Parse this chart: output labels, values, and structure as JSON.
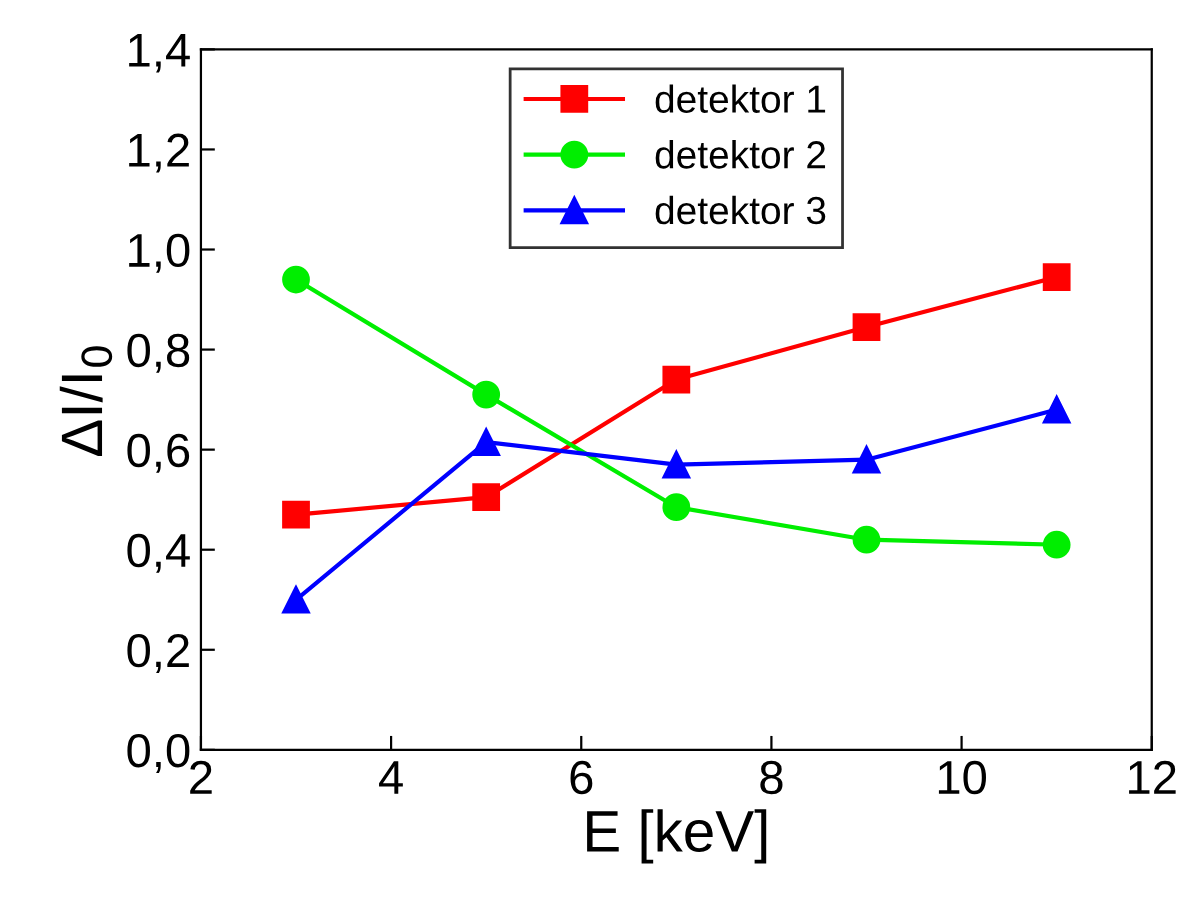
{
  "chart_data": {
    "type": "line",
    "xlabel": "E [keV]",
    "ylabel": "ΔI/I$_{0}$",
    "x": [
      3,
      5,
      7,
      9,
      11
    ],
    "series": [
      {
        "name": "detektor 1",
        "color": "#ff0000",
        "marker": "square",
        "values": [
          0.47,
          0.505,
          0.74,
          0.845,
          0.945
        ]
      },
      {
        "name": "detektor 2",
        "color": "#00ee00",
        "marker": "circle",
        "values": [
          0.94,
          0.71,
          0.485,
          0.42,
          0.41
        ]
      },
      {
        "name": "detektor 3",
        "color": "#0000ff",
        "marker": "triangle",
        "values": [
          0.3,
          0.615,
          0.57,
          0.58,
          0.68
        ]
      }
    ],
    "xlim": [
      2,
      12
    ],
    "xticks": [
      2,
      4,
      6,
      8,
      10,
      12
    ],
    "ylim": [
      0,
      1.4
    ],
    "yticks": [
      {
        "value": 0,
        "label": "0,0"
      },
      {
        "value": 0.2,
        "label": "0,2"
      },
      {
        "value": 0.4,
        "label": "0,4"
      },
      {
        "value": 0.6,
        "label": "0,6"
      },
      {
        "value": 0.8,
        "label": "0,8"
      },
      {
        "value": 1.0,
        "label": "1,0"
      },
      {
        "value": 1.2,
        "label": "1,2"
      },
      {
        "value": 1.4,
        "label": "1,4"
      }
    ],
    "legend": "top center",
    "grid": false,
    "line_style": "solid"
  }
}
